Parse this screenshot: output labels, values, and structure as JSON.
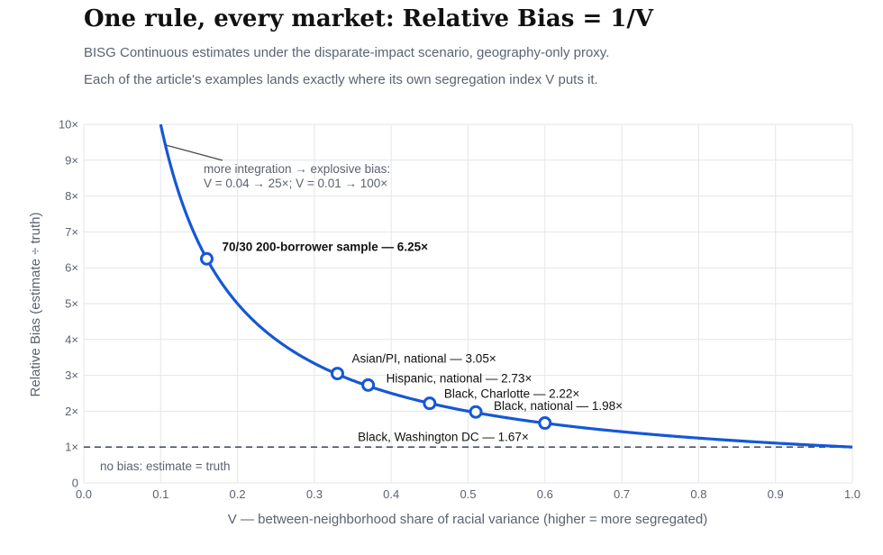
{
  "title": "One rule, every market: Relative Bias = 1/V",
  "subtitle_1": "BISG Continuous estimates under the disparate-impact scenario, geography-only proxy.",
  "subtitle_2": "Each of the article's examples lands exactly where its own segregation index V puts it.",
  "chart_data": {
    "type": "line",
    "title": "One rule, every market: Relative Bias = 1/V",
    "xlabel": "V  —  between-neighborhood share of racial variance (higher = more segregated)",
    "ylabel": "Relative Bias  (estimate ÷ truth)",
    "xlim": [
      0,
      1
    ],
    "ylim": [
      0,
      10
    ],
    "x_ticks": [
      "0.0",
      "0.1",
      "0.2",
      "0.3",
      "0.4",
      "0.5",
      "0.6",
      "0.7",
      "0.8",
      "0.9",
      "1.0"
    ],
    "y_ticks": [
      "0",
      "1×",
      "2×",
      "3×",
      "4×",
      "5×",
      "6×",
      "7×",
      "8×",
      "9×",
      "10×"
    ],
    "grid": true,
    "curve": {
      "formula": "y = 1/V",
      "color": "#1558d6"
    },
    "reference_line": {
      "y": 1,
      "label": "no bias: estimate = truth",
      "color": "#4a5066"
    },
    "points": [
      {
        "x": 0.16,
        "y": 6.25,
        "label": "70/30 200-borrower sample — 6.25×",
        "bold": true
      },
      {
        "x": 0.33,
        "y": 3.05,
        "label": "Asian/PI, national — 3.05×"
      },
      {
        "x": 0.37,
        "y": 2.73,
        "label": "Hispanic, national — 2.73×"
      },
      {
        "x": 0.45,
        "y": 2.22,
        "label": "Black, Charlotte — 2.22×"
      },
      {
        "x": 0.51,
        "y": 1.98,
        "label": "Black, national — 1.98×"
      },
      {
        "x": 0.6,
        "y": 1.67,
        "label": "Black, Washington DC — 1.67×"
      }
    ],
    "annotation": {
      "line1": "more integration → explosive bias:",
      "line2": "V = 0.04 → 25×;  V = 0.01 → 100×"
    }
  }
}
